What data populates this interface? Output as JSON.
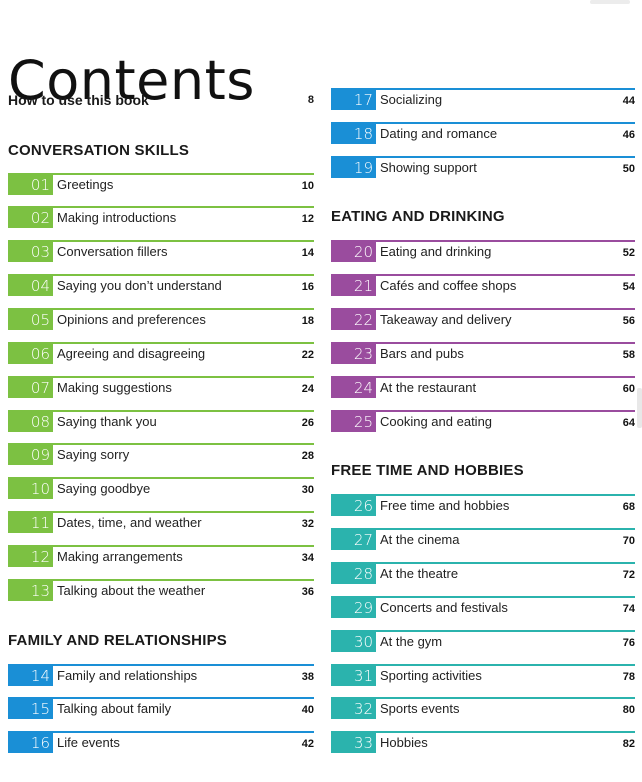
{
  "title": "Contents",
  "how_to": {
    "label": "How to use this book",
    "page": "8"
  },
  "colors": {
    "green": "#7cc142",
    "blue": "#1a8fd6",
    "purple": "#9a4c9e",
    "teal": "#2bb3ad"
  },
  "sections": {
    "conversation": "CONVERSATION SKILLS",
    "family": "FAMILY AND RELATIONSHIPS",
    "eating": "EATING AND DRINKING",
    "freetime": "FREE TIME AND HOBBIES"
  },
  "left_entries": [
    {
      "num": "01",
      "label": "Greetings",
      "page": "10",
      "color": "green"
    },
    {
      "num": "02",
      "label": "Making introductions",
      "page": "12",
      "color": "green"
    },
    {
      "num": "03",
      "label": "Conversation fillers",
      "page": "14",
      "color": "green"
    },
    {
      "num": "04",
      "label": "Saying you don’t understand",
      "page": "16",
      "color": "green"
    },
    {
      "num": "05",
      "label": "Opinions and preferences",
      "page": "18",
      "color": "green"
    },
    {
      "num": "06",
      "label": "Agreeing and disagreeing",
      "page": "22",
      "color": "green"
    },
    {
      "num": "07",
      "label": "Making suggestions",
      "page": "24",
      "color": "green"
    },
    {
      "num": "08",
      "label": "Saying thank you",
      "page": "26",
      "color": "green"
    },
    {
      "num": "09",
      "label": "Saying sorry",
      "page": "28",
      "color": "green"
    },
    {
      "num": "10",
      "label": "Saying goodbye",
      "page": "30",
      "color": "green"
    },
    {
      "num": "11",
      "label": "Dates, time, and weather",
      "page": "32",
      "color": "green"
    },
    {
      "num": "12",
      "label": "Making arrangements",
      "page": "34",
      "color": "green"
    },
    {
      "num": "13",
      "label": "Talking about the weather",
      "page": "36",
      "color": "green"
    },
    {
      "num": "14",
      "label": "Family and relationships",
      "page": "38",
      "color": "blue"
    },
    {
      "num": "15",
      "label": "Talking about family",
      "page": "40",
      "color": "blue"
    },
    {
      "num": "16",
      "label": "Life events",
      "page": "42",
      "color": "blue"
    }
  ],
  "right_entries": [
    {
      "num": "17",
      "label": "Socializing",
      "page": "44",
      "color": "blue"
    },
    {
      "num": "18",
      "label": "Dating and romance",
      "page": "46",
      "color": "blue"
    },
    {
      "num": "19",
      "label": "Showing support",
      "page": "50",
      "color": "blue"
    },
    {
      "num": "20",
      "label": "Eating and drinking",
      "page": "52",
      "color": "purple"
    },
    {
      "num": "21",
      "label": "Cafés and coffee shops",
      "page": "54",
      "color": "purple"
    },
    {
      "num": "22",
      "label": "Takeaway and delivery",
      "page": "56",
      "color": "purple"
    },
    {
      "num": "23",
      "label": "Bars and pubs",
      "page": "58",
      "color": "purple"
    },
    {
      "num": "24",
      "label": "At the restaurant",
      "page": "60",
      "color": "purple"
    },
    {
      "num": "25",
      "label": "Cooking and eating",
      "page": "64",
      "color": "purple"
    },
    {
      "num": "26",
      "label": "Free time and hobbies",
      "page": "68",
      "color": "teal"
    },
    {
      "num": "27",
      "label": "At the cinema",
      "page": "70",
      "color": "teal"
    },
    {
      "num": "28",
      "label": "At the theatre",
      "page": "72",
      "color": "teal"
    },
    {
      "num": "29",
      "label": "Concerts and festivals",
      "page": "74",
      "color": "teal"
    },
    {
      "num": "30",
      "label": "At the gym",
      "page": "76",
      "color": "teal"
    },
    {
      "num": "31",
      "label": "Sporting activities",
      "page": "78",
      "color": "teal"
    },
    {
      "num": "32",
      "label": "Sports events",
      "page": "80",
      "color": "teal"
    },
    {
      "num": "33",
      "label": "Hobbies",
      "page": "82",
      "color": "teal"
    }
  ]
}
